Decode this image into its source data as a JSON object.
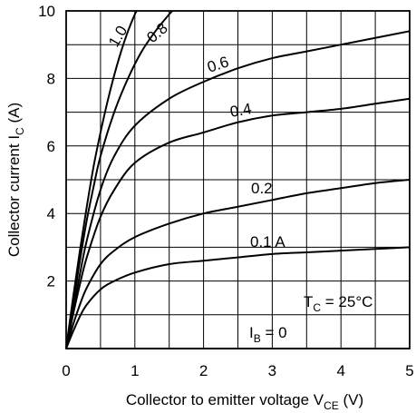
{
  "chart_data": {
    "type": "line",
    "xlabel": {
      "text": "Collector to emitter voltage  V",
      "sub": "CE",
      "unit": "  (V)"
    },
    "ylabel": {
      "text": "Collector current  I",
      "sub": "C",
      "unit": "  (A)"
    },
    "xlim": [
      0,
      5
    ],
    "ylim": [
      0,
      10
    ],
    "xticks": [
      0,
      1,
      2,
      3,
      4,
      5
    ],
    "yticks": [
      2,
      4,
      6,
      8,
      10
    ],
    "x_tick_labels": [
      "0",
      "1",
      "2",
      "3",
      "4",
      "5"
    ],
    "y_tick_labels": [
      "2",
      "4",
      "6",
      "8",
      "10"
    ],
    "grid": true,
    "grid_step_x": 0.5,
    "grid_step_y": 1,
    "annotations": {
      "temperature": {
        "prefix": "T",
        "sub": "C",
        "text": " = 25°C"
      },
      "base_zero": {
        "prefix": "I",
        "sub": "B",
        "text": " = 0"
      }
    },
    "series": [
      {
        "name": "1.0",
        "points": [
          [
            0,
            0
          ],
          [
            0.1,
            1.5
          ],
          [
            0.2,
            2.9
          ],
          [
            0.3,
            4.2
          ],
          [
            0.4,
            5.4
          ],
          [
            0.5,
            6.4
          ],
          [
            0.6,
            7.3
          ],
          [
            0.7,
            8.1
          ],
          [
            0.8,
            8.8
          ],
          [
            0.9,
            9.4
          ],
          [
            1.0,
            9.9
          ],
          [
            1.03,
            10.0
          ]
        ]
      },
      {
        "name": "0.8",
        "points": [
          [
            0,
            0
          ],
          [
            0.1,
            1.3
          ],
          [
            0.2,
            2.6
          ],
          [
            0.3,
            3.8
          ],
          [
            0.4,
            4.8
          ],
          [
            0.5,
            5.7
          ],
          [
            0.7,
            7.0
          ],
          [
            0.9,
            8.0
          ],
          [
            1.1,
            8.8
          ],
          [
            1.3,
            9.4
          ],
          [
            1.5,
            9.9
          ],
          [
            1.55,
            10.0
          ]
        ]
      },
      {
        "name": "0.6",
        "points": [
          [
            0,
            0
          ],
          [
            0.1,
            1.1
          ],
          [
            0.2,
            2.2
          ],
          [
            0.3,
            3.2
          ],
          [
            0.5,
            4.7
          ],
          [
            0.7,
            5.7
          ],
          [
            1.0,
            6.6
          ],
          [
            1.5,
            7.4
          ],
          [
            2.0,
            7.9
          ],
          [
            2.5,
            8.3
          ],
          [
            3.0,
            8.6
          ],
          [
            3.5,
            8.8
          ],
          [
            4.0,
            9.0
          ],
          [
            4.5,
            9.2
          ],
          [
            5.0,
            9.4
          ]
        ]
      },
      {
        "name": "0.4",
        "points": [
          [
            0,
            0
          ],
          [
            0.1,
            1.0
          ],
          [
            0.2,
            1.9
          ],
          [
            0.3,
            2.7
          ],
          [
            0.5,
            3.9
          ],
          [
            0.7,
            4.7
          ],
          [
            1.0,
            5.5
          ],
          [
            1.5,
            6.1
          ],
          [
            2.0,
            6.4
          ],
          [
            2.5,
            6.7
          ],
          [
            3.0,
            6.9
          ],
          [
            3.5,
            7.0
          ],
          [
            4.0,
            7.1
          ],
          [
            4.5,
            7.25
          ],
          [
            5.0,
            7.4
          ]
        ]
      },
      {
        "name": "0.2",
        "points": [
          [
            0,
            0
          ],
          [
            0.1,
            0.7
          ],
          [
            0.2,
            1.3
          ],
          [
            0.3,
            1.8
          ],
          [
            0.5,
            2.5
          ],
          [
            0.7,
            2.9
          ],
          [
            1.0,
            3.3
          ],
          [
            1.5,
            3.7
          ],
          [
            2.0,
            4.0
          ],
          [
            2.5,
            4.2
          ],
          [
            3.0,
            4.4
          ],
          [
            3.5,
            4.6
          ],
          [
            4.0,
            4.75
          ],
          [
            4.5,
            4.9
          ],
          [
            5.0,
            5.0
          ]
        ]
      },
      {
        "name": "0.1 A",
        "points": [
          [
            0,
            0
          ],
          [
            0.1,
            0.5
          ],
          [
            0.2,
            0.95
          ],
          [
            0.3,
            1.3
          ],
          [
            0.5,
            1.75
          ],
          [
            0.7,
            2.0
          ],
          [
            1.0,
            2.25
          ],
          [
            1.5,
            2.5
          ],
          [
            2.0,
            2.6
          ],
          [
            2.5,
            2.7
          ],
          [
            3.0,
            2.8
          ],
          [
            3.5,
            2.85
          ],
          [
            4.0,
            2.9
          ],
          [
            4.5,
            2.95
          ],
          [
            5.0,
            3.0
          ]
        ]
      },
      {
        "name": "I_B = 0",
        "points": [
          [
            0,
            0
          ],
          [
            5,
            0
          ]
        ]
      }
    ]
  }
}
